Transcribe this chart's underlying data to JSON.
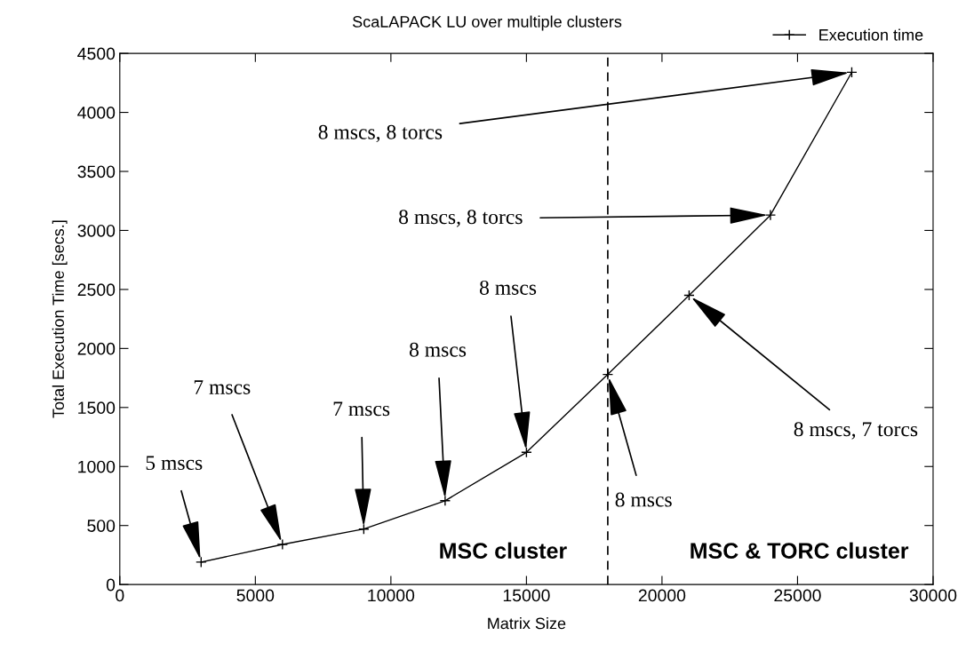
{
  "chart_data": {
    "type": "line",
    "title": "ScaLAPACK LU over multiple clusters",
    "xlabel": "Matrix Size",
    "ylabel": "Total Execution Time [secs.]",
    "x": [
      3000,
      6000,
      9000,
      12000,
      15000,
      18000,
      21000,
      24000,
      27000
    ],
    "series": [
      {
        "name": "Execution time",
        "color": "#000000",
        "values": [
          190,
          340,
          470,
          710,
          1120,
          1780,
          2450,
          3130,
          4340
        ]
      }
    ],
    "xlim": [
      0,
      30000
    ],
    "xticks": [
      0,
      5000,
      10000,
      15000,
      20000,
      25000,
      30000
    ],
    "ylim": [
      0,
      4500
    ],
    "yticks": [
      0,
      500,
      1000,
      1500,
      2000,
      2500,
      3000,
      3500,
      4000,
      4500
    ],
    "marker": "cross",
    "line_style": "solid",
    "grid": false,
    "legend": "top right",
    "ref_lines": [
      {
        "axis": "x",
        "value": 18000,
        "line_style": "dashed",
        "color": "#000000"
      }
    ],
    "annotations": [
      {
        "text": "5 mscs",
        "x": 3000,
        "y": 190
      },
      {
        "text": "7 mscs",
        "x": 6000,
        "y": 340
      },
      {
        "text": "7 mscs",
        "x": 9000,
        "y": 470
      },
      {
        "text": "8 mscs",
        "x": 12000,
        "y": 710
      },
      {
        "text": "8 mscs",
        "x": 15000,
        "y": 1120
      },
      {
        "text": "8 mscs",
        "x": 18000,
        "y": 1780
      },
      {
        "text": "8 mscs, 7 torcs",
        "x": 21000,
        "y": 2450
      },
      {
        "text": "8 mscs, 8 torcs",
        "x": 24000,
        "y": 3130
      },
      {
        "text": "8 mscs, 8 torcs",
        "x": 27000,
        "y": 4340
      },
      "MSC cluster",
      "MSC & TORC cluster"
    ]
  }
}
